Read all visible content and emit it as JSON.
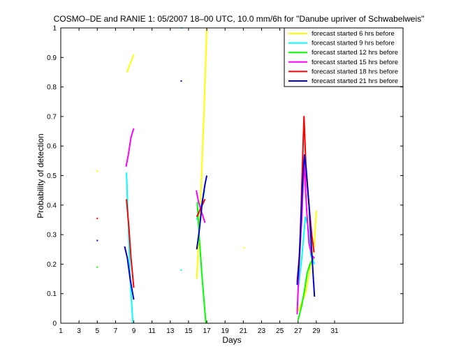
{
  "chart_data": {
    "type": "line",
    "title": "COSMO–DE and RANIE 1: 05/2007 18–00 UTC, 10.0 mm/6h for \"Danube upriver of Schwabelweis\"",
    "xlabel": "Days",
    "ylabel": "Probability of detection",
    "xlim": [
      1,
      38.5
    ],
    "ylim": [
      0,
      1
    ],
    "xticks": [
      1,
      3,
      5,
      7,
      9,
      11,
      13,
      15,
      17,
      19,
      21,
      23,
      25,
      27,
      29,
      31
    ],
    "yticks": [
      0,
      0.1,
      0.2,
      0.3,
      0.4,
      0.5,
      0.6,
      0.7,
      0.8,
      0.9,
      1
    ],
    "grid": false,
    "legend_position": "top-right",
    "series": [
      {
        "name": "forecast started 6 hrs before",
        "color": "#ffff00",
        "segments": [
          [
            [
              8.25,
              0.85
            ],
            [
              9.0,
              0.91
            ]
          ],
          [
            [
              15.9,
              0.15
            ],
            [
              16.3,
              0.4
            ],
            [
              16.7,
              0.72
            ],
            [
              17.0,
              1.0
            ]
          ],
          [
            [
              27.0,
              0.04
            ],
            [
              27.4,
              0.07
            ],
            [
              27.8,
              0.1
            ],
            [
              28.1,
              0.15
            ],
            [
              28.4,
              0.2
            ],
            [
              28.75,
              0.26
            ],
            [
              29.0,
              0.38
            ]
          ]
        ],
        "points": [
          [
            5.0,
            0.515
          ],
          [
            21.1,
            0.255
          ]
        ]
      },
      {
        "name": "forecast started 9 hrs before",
        "color": "#00ffff",
        "segments": [
          [
            [
              8.2,
              0.51
            ],
            [
              8.35,
              0.38
            ],
            [
              8.6,
              0.15
            ],
            [
              8.9,
              0.0
            ]
          ],
          [
            [
              15.9,
              0.35
            ],
            [
              16.2,
              0.38
            ],
            [
              16.5,
              0.41
            ],
            [
              16.75,
              0.45
            ]
          ],
          [
            [
              27.0,
              0.11
            ],
            [
              27.4,
              0.22
            ],
            [
              27.8,
              0.36
            ],
            [
              28.1,
              0.33
            ],
            [
              28.4,
              0.23
            ],
            [
              28.8,
              0.2
            ]
          ]
        ],
        "points": [
          [
            14.2,
            1.0
          ],
          [
            14.2,
            0.18
          ]
        ]
      },
      {
        "name": "forecast started 12 hrs before",
        "color": "#00ff00",
        "segments": [
          [
            [
              15.95,
              0.41
            ],
            [
              16.2,
              0.28
            ],
            [
              16.5,
              0.15
            ],
            [
              16.9,
              0.0
            ]
          ],
          [
            [
              27.0,
              0.01
            ],
            [
              27.4,
              0.06
            ],
            [
              27.7,
              0.11
            ],
            [
              28.0,
              0.17
            ],
            [
              28.3,
              0.2
            ],
            [
              28.7,
              0.22
            ]
          ]
        ],
        "points": [
          [
            5.0,
            0.19
          ]
        ]
      },
      {
        "name": "forecast started 15 hrs before",
        "color": "#ff00ff",
        "segments": [
          [
            [
              8.15,
              0.53
            ],
            [
              8.4,
              0.57
            ],
            [
              8.7,
              0.63
            ],
            [
              9.0,
              0.66
            ]
          ],
          [
            [
              15.85,
              0.45
            ],
            [
              16.1,
              0.41
            ],
            [
              16.4,
              0.38
            ],
            [
              16.8,
              0.34
            ]
          ],
          [
            [
              26.9,
              0.03
            ],
            [
              27.1,
              0.19
            ],
            [
              27.4,
              0.35
            ],
            [
              27.65,
              0.55
            ],
            [
              27.95,
              0.38
            ],
            [
              28.2,
              0.27
            ],
            [
              28.5,
              0.23
            ],
            [
              28.8,
              0.22
            ]
          ]
        ],
        "points": []
      },
      {
        "name": "forecast started 18 hrs before",
        "color": "#ff0000",
        "segments": [
          [
            [
              8.2,
              0.42
            ],
            [
              8.45,
              0.33
            ],
            [
              8.7,
              0.22
            ],
            [
              9.0,
              0.12
            ]
          ],
          [
            [
              15.9,
              0.36
            ],
            [
              16.2,
              0.38
            ],
            [
              16.5,
              0.4
            ],
            [
              16.8,
              0.42
            ]
          ],
          [
            [
              26.9,
              0.14
            ],
            [
              27.2,
              0.25
            ],
            [
              27.4,
              0.46
            ],
            [
              27.65,
              0.7
            ],
            [
              27.9,
              0.5
            ],
            [
              28.2,
              0.4
            ],
            [
              28.5,
              0.3
            ],
            [
              28.75,
              0.24
            ]
          ]
        ],
        "points": [
          [
            5.0,
            0.355
          ]
        ]
      },
      {
        "name": "forecast started 21 hrs before",
        "color": "#0000cc",
        "segments": [
          [
            [
              8.0,
              0.26
            ],
            [
              8.3,
              0.22
            ],
            [
              8.6,
              0.15
            ],
            [
              9.0,
              0.08
            ]
          ],
          [
            [
              15.9,
              0.25
            ],
            [
              16.2,
              0.32
            ],
            [
              16.5,
              0.41
            ],
            [
              16.8,
              0.47
            ],
            [
              17.0,
              0.5
            ]
          ],
          [
            [
              26.9,
              0.13
            ],
            [
              27.1,
              0.2
            ],
            [
              27.3,
              0.34
            ],
            [
              27.5,
              0.48
            ],
            [
              27.7,
              0.57
            ],
            [
              27.9,
              0.52
            ],
            [
              28.2,
              0.4
            ],
            [
              28.5,
              0.24
            ],
            [
              28.8,
              0.09
            ]
          ]
        ],
        "points": [
          [
            5.0,
            0.28
          ],
          [
            14.2,
            0.82
          ]
        ]
      }
    ]
  }
}
